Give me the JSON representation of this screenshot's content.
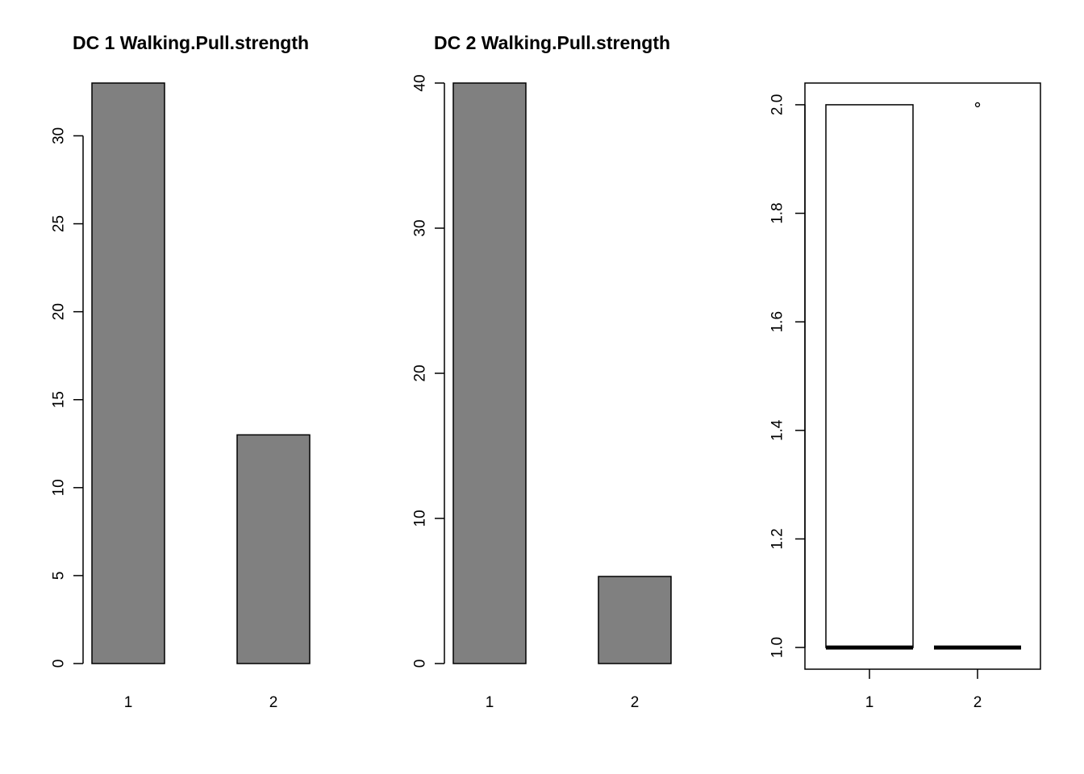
{
  "chart_data": [
    {
      "type": "bar",
      "title": "DC 1 Walking.Pull.strength",
      "categories": [
        "1",
        "2"
      ],
      "values": [
        33,
        13
      ],
      "xlabel": "",
      "ylabel": "",
      "ylim": [
        0,
        33
      ],
      "yticks": [
        0,
        5,
        10,
        15,
        20,
        25,
        30
      ],
      "bar_color": "#808080",
      "grid": false
    },
    {
      "type": "bar",
      "title": "DC 2 Walking.Pull.strength",
      "categories": [
        "1",
        "2"
      ],
      "values": [
        40,
        6
      ],
      "xlabel": "",
      "ylabel": "",
      "ylim": [
        0,
        40
      ],
      "yticks": [
        0,
        10,
        20,
        30,
        40
      ],
      "bar_color": "#808080",
      "grid": false
    },
    {
      "type": "boxplot",
      "title": "",
      "categories": [
        "1",
        "2"
      ],
      "boxes": [
        {
          "min": 1.0,
          "q1": 1.0,
          "median": 1.0,
          "q3": 2.0,
          "max": 2.0,
          "outliers": []
        },
        {
          "min": 1.0,
          "q1": 1.0,
          "median": 1.0,
          "q3": 1.0,
          "max": 1.0,
          "outliers": [
            2.0
          ]
        }
      ],
      "xlabel": "",
      "ylabel": "",
      "ylim": [
        0.96,
        2.04
      ],
      "yticks": [
        "1.0",
        "1.2",
        "1.4",
        "1.6",
        "1.8",
        "2.0"
      ],
      "grid": false
    }
  ]
}
